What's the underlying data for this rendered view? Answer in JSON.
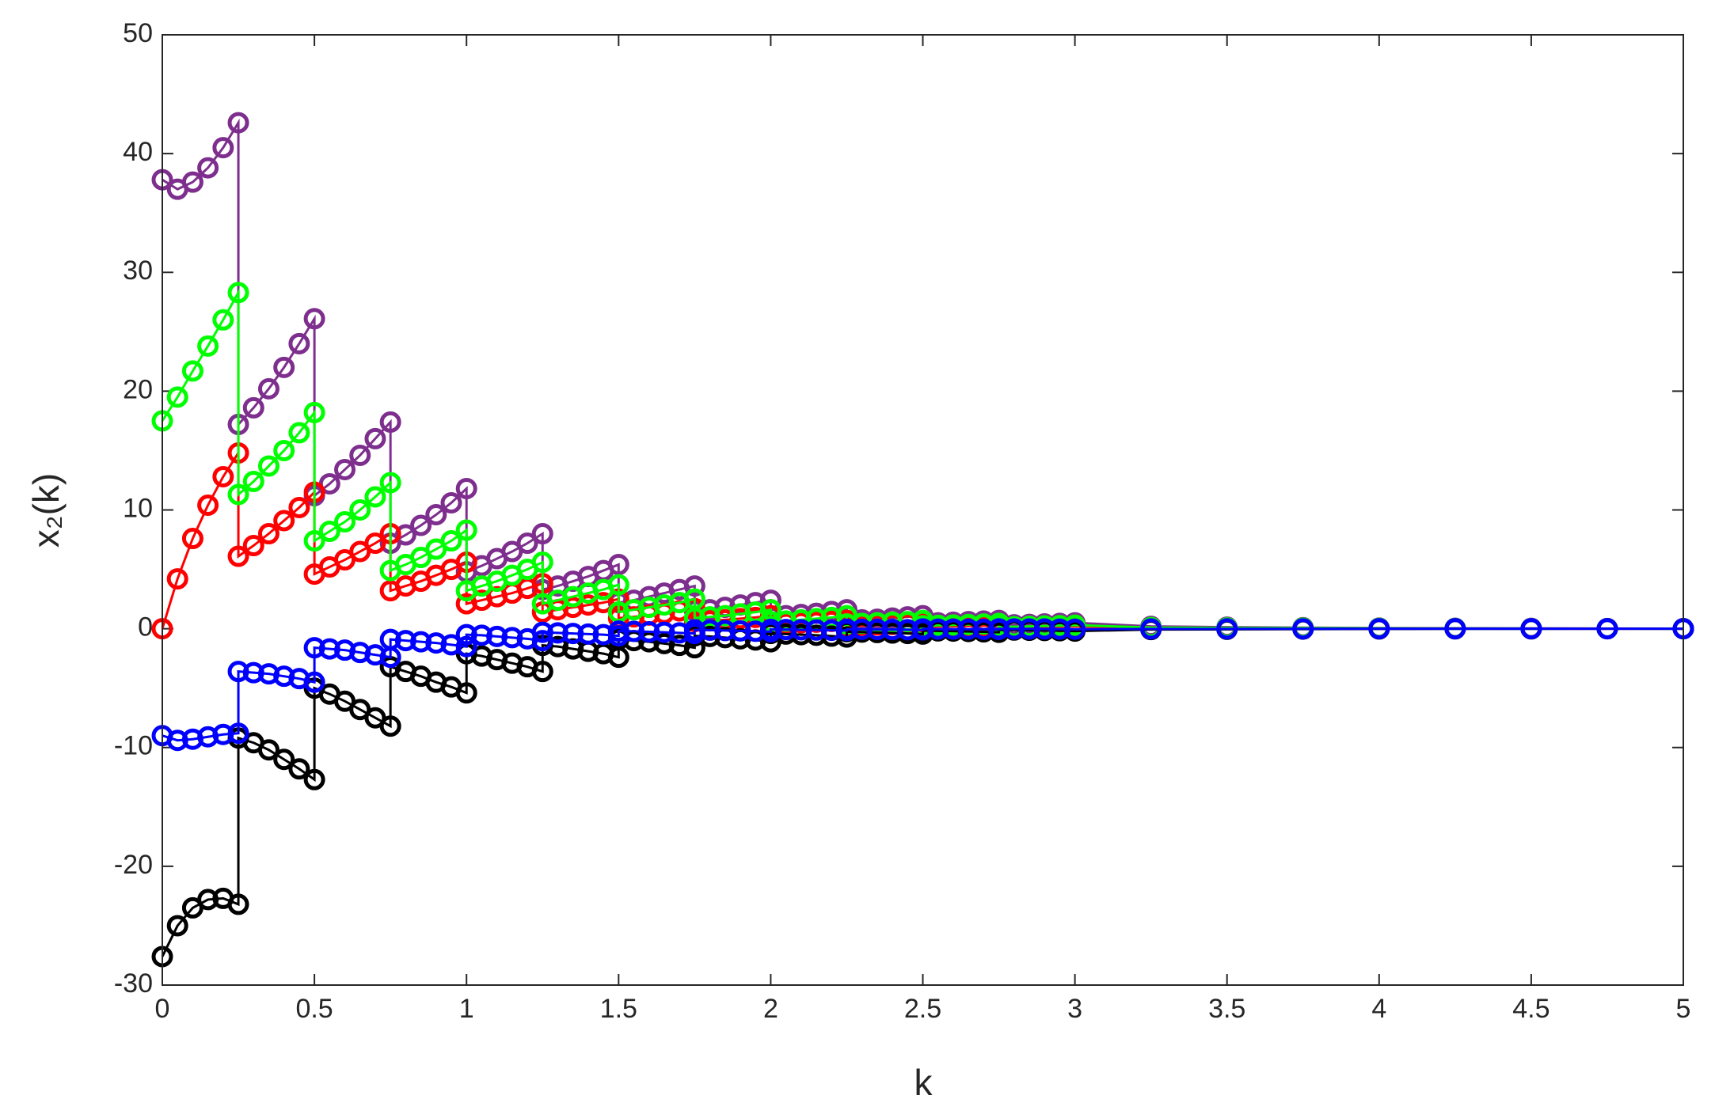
{
  "chart_data": {
    "type": "line",
    "x_label": "k",
    "y_label": "x₂(k)",
    "xlim": [
      0,
      5
    ],
    "ylim": [
      -30,
      50
    ],
    "xticks": [
      0,
      0.5,
      1,
      1.5,
      2,
      2.5,
      3,
      3.5,
      4,
      4.5,
      5
    ],
    "yticks": [
      -30,
      -20,
      -10,
      0,
      10,
      20,
      30,
      40,
      50
    ],
    "marker": "circle",
    "x": [
      0,
      0.05,
      0.1,
      0.15,
      0.2,
      0.25,
      0.25,
      0.3,
      0.35,
      0.4,
      0.45,
      0.5,
      0.5,
      0.55,
      0.6,
      0.65,
      0.7,
      0.75,
      0.75,
      0.8,
      0.85,
      0.9,
      0.95,
      1,
      1,
      1.05,
      1.1,
      1.15,
      1.2,
      1.25,
      1.25,
      1.3,
      1.35,
      1.4,
      1.45,
      1.5,
      1.5,
      1.55,
      1.6,
      1.65,
      1.7,
      1.75,
      1.75,
      1.8,
      1.85,
      1.9,
      1.95,
      2,
      2,
      2.05,
      2.1,
      2.15,
      2.2,
      2.25,
      2.25,
      2.3,
      2.35,
      2.4,
      2.45,
      2.5,
      2.5,
      2.55,
      2.6,
      2.65,
      2.7,
      2.75,
      2.75,
      2.8,
      2.85,
      2.9,
      2.95,
      3,
      3.25,
      3.5,
      3.75,
      4,
      4.25,
      4.5,
      4.75,
      5
    ],
    "series": [
      {
        "color": "#7e2f8e",
        "values": [
          37.8,
          37.0,
          37.6,
          38.8,
          40.5,
          42.6,
          17.2,
          18.6,
          20.2,
          22,
          24,
          26.1,
          11.2,
          12.2,
          13.4,
          14.6,
          16,
          17.4,
          7.2,
          7.9,
          8.7,
          9.6,
          10.6,
          11.8,
          4.8,
          5.3,
          5.9,
          6.5,
          7.2,
          8.0,
          3.3,
          3.6,
          4.0,
          4.4,
          4.9,
          5.4,
          2.2,
          2.4,
          2.7,
          3.0,
          3.3,
          3.6,
          1.5,
          1.6,
          1.8,
          2.0,
          2.2,
          2.4,
          1.0,
          1.1,
          1.2,
          1.3,
          1.45,
          1.6,
          0.7,
          0.75,
          0.8,
          0.9,
          1.0,
          1.1,
          0.45,
          0.5,
          0.55,
          0.6,
          0.65,
          0.7,
          0.3,
          0.33,
          0.37,
          0.41,
          0.45,
          0.5,
          0.2,
          0.13,
          0.09,
          0.06,
          0.04,
          0.03,
          0.02,
          0.01
        ]
      },
      {
        "color": "#ff0000",
        "values": [
          0,
          4.2,
          7.6,
          10.4,
          12.8,
          14.8,
          6.1,
          7.0,
          8.0,
          9.1,
          10.2,
          11.5,
          4.6,
          5.2,
          5.8,
          6.5,
          7.2,
          8.0,
          3.2,
          3.6,
          4.0,
          4.5,
          5.0,
          5.6,
          2.1,
          2.4,
          2.7,
          3.0,
          3.4,
          3.8,
          1.4,
          1.6,
          1.8,
          2.0,
          2.2,
          2.5,
          0.9,
          1.0,
          1.15,
          1.3,
          1.5,
          1.7,
          0.6,
          0.67,
          0.75,
          0.85,
          0.95,
          1.1,
          0.4,
          0.45,
          0.5,
          0.55,
          0.62,
          0.7,
          0.25,
          0.28,
          0.32,
          0.36,
          0.4,
          0.45,
          0.15,
          0.18,
          0.2,
          0.23,
          0.26,
          0.3,
          0.1,
          0.11,
          0.13,
          0.15,
          0.17,
          0.2,
          0.07,
          0.05,
          0.03,
          0.02,
          0.01,
          0.01,
          0,
          0
        ]
      },
      {
        "color": "#00ff00",
        "values": [
          17.5,
          19.5,
          21.7,
          23.8,
          26.0,
          28.3,
          11.3,
          12.4,
          13.7,
          15.0,
          16.5,
          18.2,
          7.4,
          8.2,
          9.0,
          10.0,
          11.1,
          12.3,
          4.9,
          5.4,
          6.0,
          6.7,
          7.4,
          8.3,
          3.2,
          3.6,
          4.0,
          4.5,
          5.0,
          5.6,
          2.1,
          2.4,
          2.7,
          3.0,
          3.3,
          3.7,
          1.4,
          1.6,
          1.8,
          2.0,
          2.2,
          2.5,
          0.9,
          1.0,
          1.1,
          1.25,
          1.4,
          1.6,
          0.6,
          0.65,
          0.75,
          0.85,
          0.95,
          1.1,
          0.4,
          0.45,
          0.5,
          0.55,
          0.6,
          0.7,
          0.25,
          0.28,
          0.32,
          0.36,
          0.4,
          0.45,
          0.15,
          0.17,
          0.2,
          0.23,
          0.26,
          0.3,
          0.1,
          0.07,
          0.05,
          0.03,
          0.02,
          0.01,
          0.01,
          0
        ]
      },
      {
        "color": "#000000",
        "values": [
          -27.6,
          -25.0,
          -23.5,
          -22.8,
          -22.7,
          -23.2,
          -9.2,
          -9.6,
          -10.2,
          -11.0,
          -11.8,
          -12.7,
          -5.0,
          -5.5,
          -6.1,
          -6.8,
          -7.5,
          -8.2,
          -3.2,
          -3.6,
          -4.0,
          -4.5,
          -4.9,
          -5.4,
          -2.1,
          -2.3,
          -2.6,
          -2.9,
          -3.2,
          -3.6,
          -1.4,
          -1.5,
          -1.7,
          -1.9,
          -2.1,
          -2.4,
          -0.9,
          -1.0,
          -1.1,
          -1.25,
          -1.4,
          -1.6,
          -0.6,
          -0.65,
          -0.75,
          -0.85,
          -0.95,
          -1.1,
          -0.4,
          -0.45,
          -0.5,
          -0.55,
          -0.62,
          -0.7,
          -0.25,
          -0.28,
          -0.32,
          -0.36,
          -0.4,
          -0.45,
          -0.15,
          -0.18,
          -0.2,
          -0.23,
          -0.26,
          -0.3,
          -0.1,
          -0.11,
          -0.13,
          -0.15,
          -0.17,
          -0.2,
          -0.07,
          -0.05,
          -0.03,
          -0.02,
          -0.01,
          -0.01,
          0,
          0
        ]
      },
      {
        "color": "#0000ff",
        "values": [
          -9.0,
          -9.4,
          -9.3,
          -9.1,
          -8.9,
          -8.8,
          -3.6,
          -3.7,
          -3.8,
          -4.0,
          -4.2,
          -4.5,
          -1.6,
          -1.7,
          -1.8,
          -2.0,
          -2.2,
          -2.4,
          -0.9,
          -1.0,
          -1.1,
          -1.2,
          -1.35,
          -1.5,
          -0.5,
          -0.55,
          -0.65,
          -0.75,
          -0.85,
          -1.0,
          -0.3,
          -0.35,
          -0.4,
          -0.45,
          -0.5,
          -0.6,
          -0.2,
          -0.22,
          -0.26,
          -0.3,
          -0.35,
          -0.4,
          -0.1,
          -0.12,
          -0.15,
          -0.18,
          -0.21,
          -0.25,
          -0.06,
          -0.07,
          -0.09,
          -0.11,
          -0.13,
          -0.15,
          -0.04,
          -0.05,
          -0.06,
          -0.07,
          -0.08,
          -0.1,
          -0.02,
          -0.03,
          -0.03,
          -0.04,
          -0.05,
          -0.06,
          -0.01,
          -0.02,
          -0.02,
          -0.02,
          -0.03,
          -0.04,
          -0.02,
          -0.01,
          -0.01,
          0,
          0,
          0,
          0,
          0
        ]
      }
    ]
  }
}
